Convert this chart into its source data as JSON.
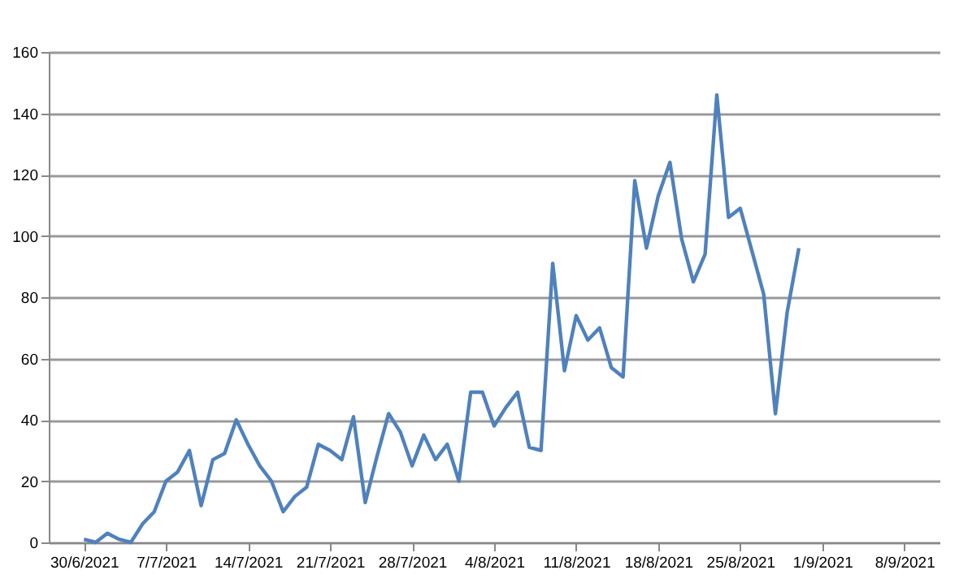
{
  "chart_data": {
    "type": "line",
    "x": [
      "2021-06-30",
      "2021-07-01",
      "2021-07-02",
      "2021-07-03",
      "2021-07-04",
      "2021-07-05",
      "2021-07-06",
      "2021-07-07",
      "2021-07-08",
      "2021-07-09",
      "2021-07-10",
      "2021-07-11",
      "2021-07-12",
      "2021-07-13",
      "2021-07-14",
      "2021-07-15",
      "2021-07-16",
      "2021-07-17",
      "2021-07-18",
      "2021-07-19",
      "2021-07-20",
      "2021-07-21",
      "2021-07-22",
      "2021-07-23",
      "2021-07-24",
      "2021-07-25",
      "2021-07-26",
      "2021-07-27",
      "2021-07-28",
      "2021-07-29",
      "2021-07-30",
      "2021-07-31",
      "2021-08-01",
      "2021-08-02",
      "2021-08-03",
      "2021-08-04",
      "2021-08-05",
      "2021-08-06",
      "2021-08-07",
      "2021-08-08",
      "2021-08-09",
      "2021-08-10",
      "2021-08-11",
      "2021-08-12",
      "2021-08-13",
      "2021-08-14",
      "2021-08-15",
      "2021-08-16",
      "2021-08-17",
      "2021-08-18",
      "2021-08-19",
      "2021-08-20",
      "2021-08-21",
      "2021-08-22",
      "2021-08-23",
      "2021-08-24",
      "2021-08-25",
      "2021-08-26",
      "2021-08-27",
      "2021-08-28",
      "2021-08-29",
      "2021-08-30"
    ],
    "series": [
      {
        "color": "#4f81bd",
        "values": [
          1,
          0,
          3,
          1,
          0,
          6,
          10,
          20,
          23,
          30,
          12,
          27,
          29,
          40,
          32,
          25,
          20,
          10,
          15,
          18,
          32,
          30,
          27,
          41,
          13,
          28,
          42,
          36,
          25,
          35,
          27,
          32,
          20,
          49,
          49,
          38,
          44,
          49,
          31,
          30,
          91,
          56,
          74,
          66,
          70,
          57,
          54,
          118,
          96,
          113,
          124,
          99,
          85,
          94,
          146,
          106,
          109,
          95,
          81,
          42,
          75,
          96
        ]
      }
    ],
    "xlim": [
      "2021-06-27",
      "2021-09-11"
    ],
    "xticks": [
      {
        "value": "2021-06-30",
        "label": "30/6/2021"
      },
      {
        "value": "2021-07-07",
        "label": "7/7/2021"
      },
      {
        "value": "2021-07-14",
        "label": "14/7/2021"
      },
      {
        "value": "2021-07-21",
        "label": "21/7/2021"
      },
      {
        "value": "2021-07-28",
        "label": "28/7/2021"
      },
      {
        "value": "2021-08-04",
        "label": "4/8/2021"
      },
      {
        "value": "2021-08-11",
        "label": "11/8/2021"
      },
      {
        "value": "2021-08-18",
        "label": "18/8/2021"
      },
      {
        "value": "2021-08-25",
        "label": "25/8/2021"
      },
      {
        "value": "2021-09-01",
        "label": "1/9/2021"
      },
      {
        "value": "2021-09-08",
        "label": "8/9/2021"
      }
    ],
    "ylim": [
      0,
      160
    ],
    "yticks": [
      0,
      20,
      40,
      60,
      80,
      100,
      120,
      140,
      160
    ],
    "grid": "y",
    "marker": "none",
    "line_style": "solid"
  }
}
